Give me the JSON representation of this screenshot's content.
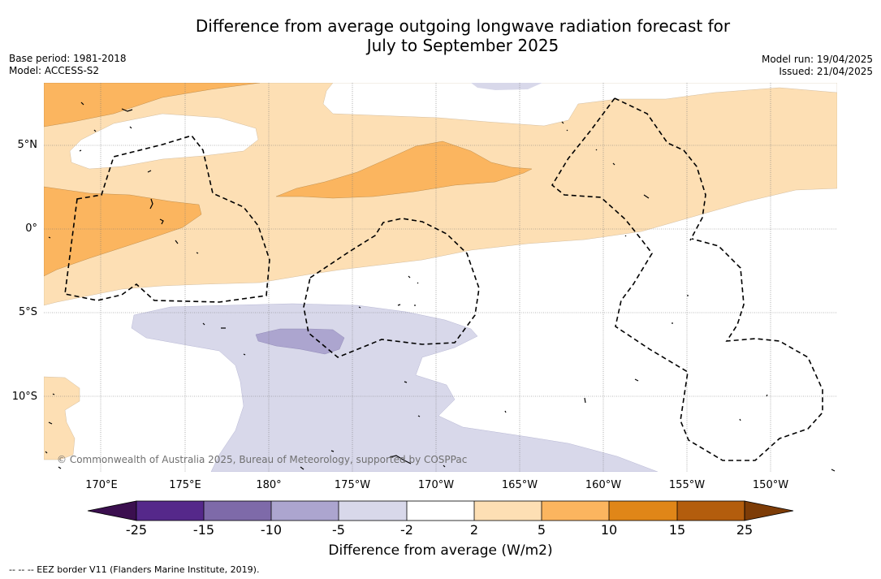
{
  "title": {
    "line1": "Difference from average outgoing longwave radiation forecast for",
    "line2": "July to September 2025"
  },
  "meta_left": {
    "base_period": "Base period: 1981-2018",
    "model": "Model: ACCESS-S2"
  },
  "meta_right": {
    "model_run": "Model run: 19/04/2025",
    "issued": "Issued: 21/04/2025"
  },
  "map": {
    "lon_labels": [
      "170°E",
      "175°E",
      "180°",
      "175°W",
      "170°W",
      "165°W",
      "160°W",
      "155°W",
      "150°W"
    ],
    "lat_labels": [
      "5°N",
      "0°",
      "5°S",
      "10°S"
    ],
    "copyright": "© Commonwealth of Australia 2025, Bureau of Meteorology, supported by COSPPac"
  },
  "legend": {
    "title": "Difference from average (W/m2)",
    "ticks": [
      "-25",
      "-15",
      "-10",
      "-5",
      "-2",
      "2",
      "5",
      "10",
      "15",
      "25"
    ],
    "colors": {
      "below_min": "#3b0f4f",
      "bins": [
        "#55288a",
        "#7e6aa9",
        "#aca5cf",
        "#d8d8ea",
        "#ffffff",
        "#fddfb4",
        "#fbb55f",
        "#e08618",
        "#b35d0d"
      ],
      "above_max": "#7d3c07"
    },
    "eez_note": "--  --  -- EEZ border V11 (Flanders Marine Institute, 2019)."
  }
}
